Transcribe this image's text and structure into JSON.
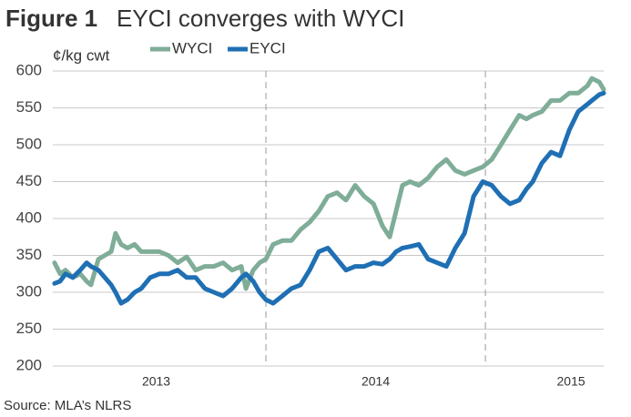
{
  "chart_data": {
    "type": "line",
    "figure_label": "Figure 1",
    "title": "EYCI converges with WYCI",
    "y_label": "¢/kg cwt",
    "source": "Source: MLA’s NLRS",
    "x": [
      2013.037,
      2013.062,
      2013.087,
      2013.12,
      2013.154,
      2013.183,
      2013.203,
      2013.237,
      2013.266,
      2013.295,
      2013.315,
      2013.34,
      2013.369,
      2013.402,
      2013.432,
      2013.473,
      2013.515,
      2013.556,
      2013.598,
      2013.639,
      2013.68,
      2013.722,
      2013.763,
      2013.805,
      2013.846,
      2013.888,
      2013.909,
      2013.942,
      2013.971,
      2014.0,
      2014.033,
      2014.075,
      2014.116,
      2014.158,
      2014.199,
      2014.241,
      2014.282,
      2014.324,
      2014.365,
      2014.407,
      2014.448,
      2014.49,
      2014.531,
      2014.564,
      2014.593,
      2014.622,
      2014.656,
      2014.697,
      2014.739,
      2014.78,
      2014.822,
      2014.863,
      2014.905,
      2014.946,
      2014.988,
      2015.029,
      2015.071,
      2015.112,
      2015.154,
      2015.187,
      2015.216,
      2015.257,
      2015.299,
      2015.34,
      2015.382,
      2015.423,
      2015.465,
      2015.485,
      2015.519,
      2015.539
    ],
    "series": [
      {
        "name": "WYCI",
        "color": "#7fad98",
        "values": [
          340,
          325,
          330,
          320,
          325,
          315,
          310,
          345,
          350,
          355,
          380,
          365,
          360,
          365,
          355,
          355,
          355,
          350,
          340,
          348,
          330,
          335,
          335,
          340,
          330,
          335,
          305,
          330,
          340,
          345,
          365,
          370,
          370,
          385,
          395,
          410,
          430,
          435,
          425,
          445,
          430,
          420,
          390,
          375,
          410,
          445,
          450,
          445,
          455,
          470,
          480,
          465,
          460,
          465,
          470,
          480,
          500,
          520,
          540,
          535,
          540,
          545,
          560,
          560,
          570,
          570,
          580,
          590,
          585,
          575
        ]
      },
      {
        "name": "EYCI",
        "color": "#1f6fb4",
        "values": [
          312,
          315,
          325,
          320,
          330,
          340,
          335,
          330,
          320,
          310,
          300,
          285,
          290,
          300,
          305,
          320,
          325,
          325,
          330,
          320,
          320,
          305,
          300,
          295,
          305,
          320,
          325,
          315,
          300,
          290,
          285,
          295,
          305,
          310,
          330,
          355,
          360,
          345,
          330,
          335,
          335,
          340,
          338,
          345,
          355,
          360,
          362,
          365,
          345,
          340,
          335,
          360,
          380,
          430,
          450,
          445,
          430,
          420,
          425,
          440,
          450,
          475,
          490,
          485,
          520,
          545,
          555,
          560,
          568,
          570
        ]
      }
    ],
    "xlim": [
      2013.029,
      2015.539
    ],
    "xticks": [
      {
        "value": 2013.5,
        "label": "2013"
      },
      {
        "value": 2014.5,
        "label": "2014"
      },
      {
        "value": 2015.39,
        "label": "2015"
      }
    ],
    "year_separators": [
      2014,
      2015
    ],
    "ylim": [
      200,
      600
    ],
    "yticks": [
      200,
      250,
      300,
      350,
      400,
      450,
      500,
      550,
      600
    ],
    "grid": true
  }
}
